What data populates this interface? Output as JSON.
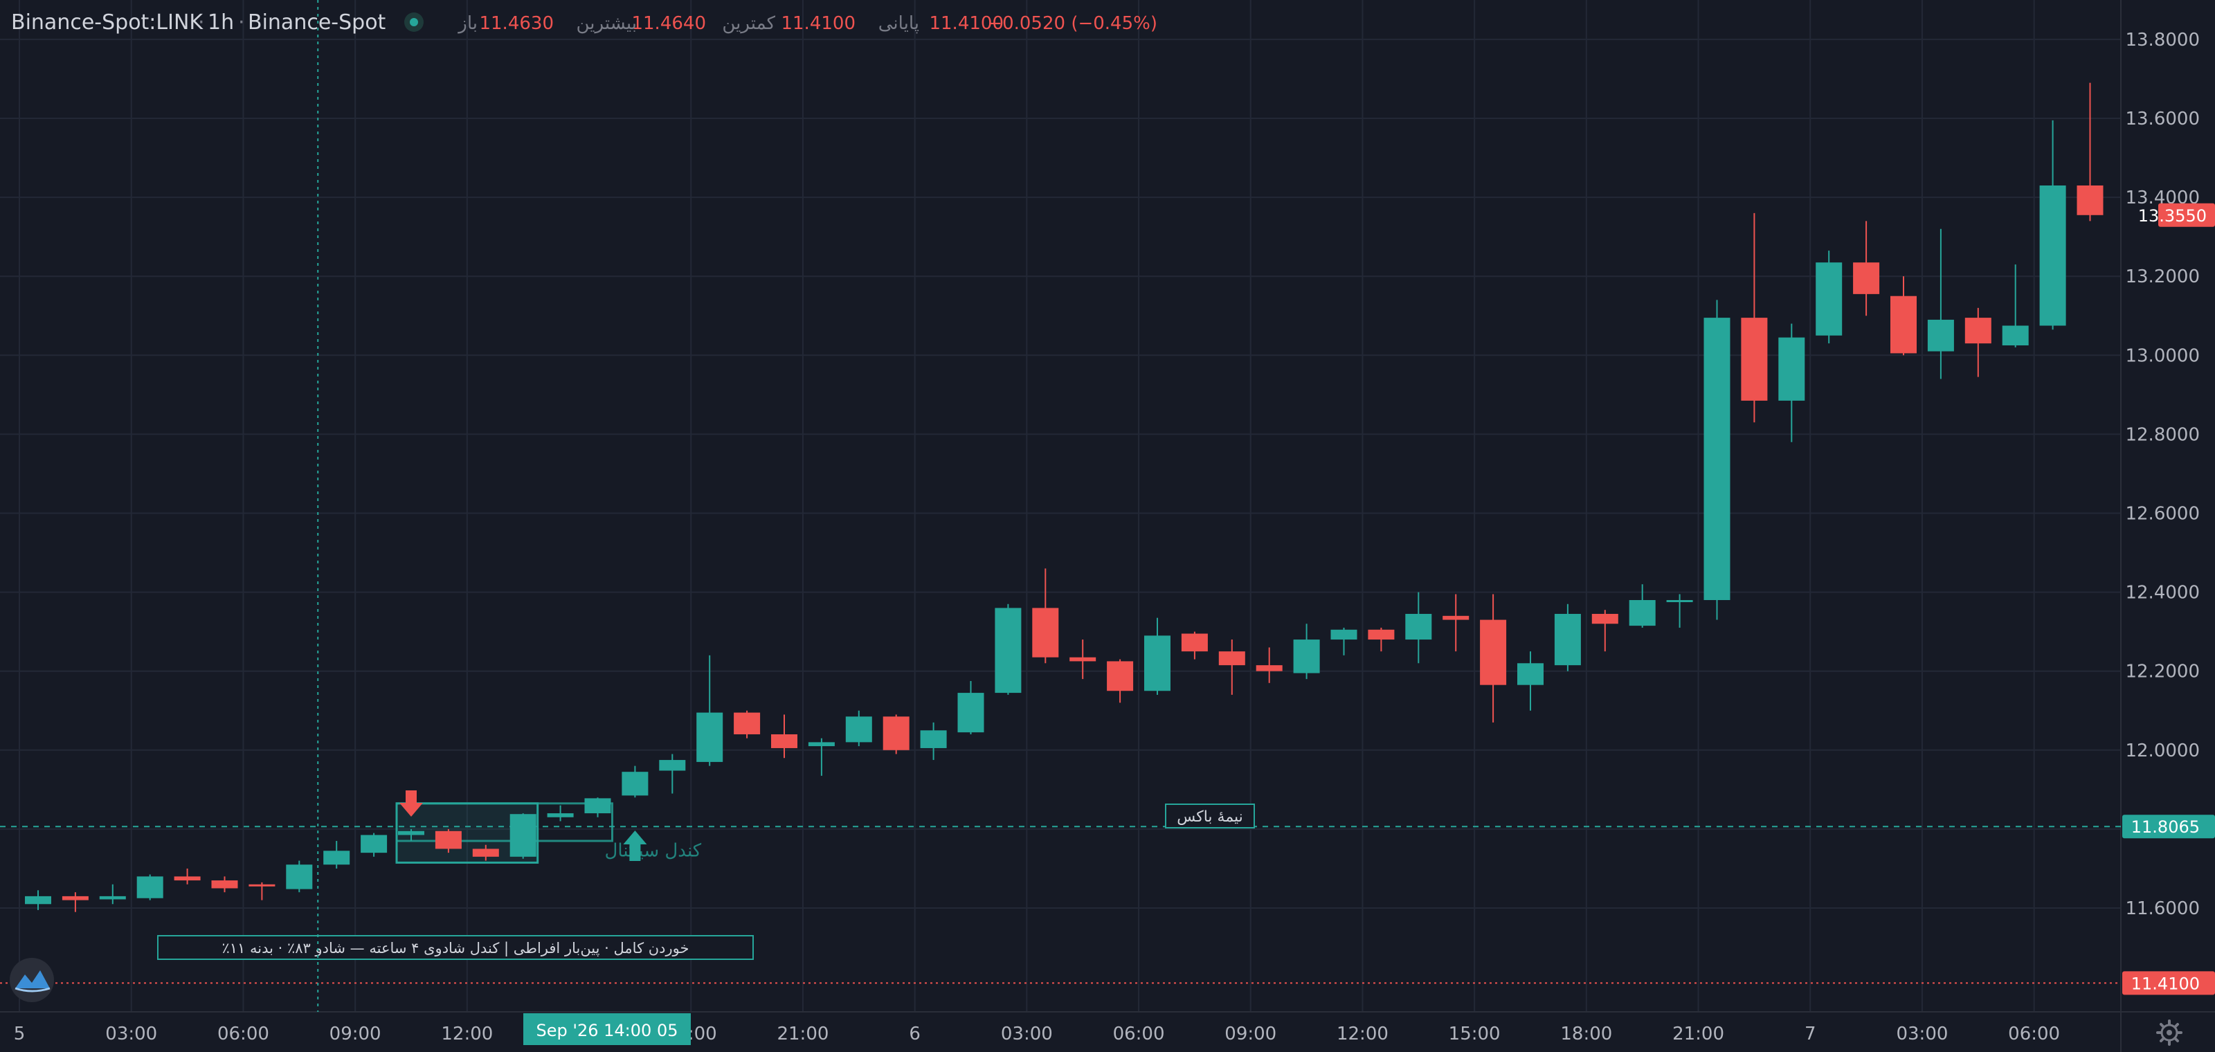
{
  "header": {
    "symbol": "Binance-Spot:LINK",
    "sep1": "·",
    "interval": "1h",
    "sep2": "·",
    "exchange": "Binance-Spot",
    "open_label": "باز",
    "open_value": "11.4630",
    "high_label": "بیشترین",
    "high_value": "11.4640",
    "low_label": "کمترین",
    "low_value": "11.4100",
    "close_label": "پایانی",
    "close_value": "11.4100",
    "change": "−0.0520 (−0.45%)"
  },
  "annotations": {
    "signal_label": "کندل سیگنال",
    "half_box_label": "نیمهٔ باکس",
    "info_text": "٪خوردن کامل · پین‌بار افراطی | کندل شادوی ۴ ساعته — شادو ۸۳٪ · بدنه ۱۱"
  },
  "crosshair_label": "Sep '26  14:00 05",
  "price_tags": {
    "last": "13.3550",
    "midline": "11.8065",
    "low_line": "11.4100"
  },
  "colors": {
    "background": "#161a25",
    "bull": "#26a69a",
    "bear": "#ef5350",
    "grid": "#232836",
    "axis_text": "#b2b5be"
  },
  "icons": [
    "logo-icon",
    "settings-gear-icon",
    "status-dot-icon",
    "arrow-down-icon",
    "arrow-up-icon"
  ],
  "chart_data": {
    "type": "candlestick",
    "title": "Binance-Spot:LINK · 1h",
    "y_axis": {
      "ticks": [
        "11.6000",
        "11.8000",
        "12.0000",
        "12.2000",
        "12.4000",
        "12.6000",
        "12.8000",
        "13.0000",
        "13.2000",
        "13.4000",
        "13.6000",
        "13.8000"
      ],
      "ylim": [
        11.39,
        13.86
      ]
    },
    "x_axis": {
      "ticks": [
        {
          "label": "5",
          "at": -0.5
        },
        {
          "label": "03:00",
          "at": 2.5
        },
        {
          "label": "06:00",
          "at": 5.5
        },
        {
          "label": "09:00",
          "at": 8.5
        },
        {
          "label": "12:00",
          "at": 11.5
        },
        {
          "label": "18:00",
          "at": 17.5
        },
        {
          "label": "21:00",
          "at": 20.5
        },
        {
          "label": "6",
          "at": 23.5
        },
        {
          "label": "03:00",
          "at": 26.5
        },
        {
          "label": "06:00",
          "at": 29.5
        },
        {
          "label": "09:00",
          "at": 32.5
        },
        {
          "label": "12:00",
          "at": 35.5
        },
        {
          "label": "15:00",
          "at": 38.5
        },
        {
          "label": "18:00",
          "at": 41.5
        },
        {
          "label": "21:00",
          "at": 44.5
        },
        {
          "label": "7",
          "at": 47.5
        },
        {
          "label": "03:00",
          "at": 50.5
        },
        {
          "label": "06:00",
          "at": 53.5
        }
      ]
    },
    "candles": [
      {
        "o": 11.61,
        "h": 11.645,
        "l": 11.595,
        "c": 11.63
      },
      {
        "o": 11.63,
        "h": 11.64,
        "l": 11.59,
        "c": 11.62
      },
      {
        "o": 11.622,
        "h": 11.66,
        "l": 11.61,
        "c": 11.63
      },
      {
        "o": 11.625,
        "h": 11.685,
        "l": 11.62,
        "c": 11.68
      },
      {
        "o": 11.68,
        "h": 11.7,
        "l": 11.66,
        "c": 11.67
      },
      {
        "o": 11.67,
        "h": 11.68,
        "l": 11.64,
        "c": 11.65
      },
      {
        "o": 11.66,
        "h": 11.665,
        "l": 11.62,
        "c": 11.658
      },
      {
        "o": 11.648,
        "h": 11.72,
        "l": 11.64,
        "c": 11.71
      },
      {
        "o": 11.71,
        "h": 11.77,
        "l": 11.7,
        "c": 11.745
      },
      {
        "o": 11.74,
        "h": 11.79,
        "l": 11.73,
        "c": 11.785
      },
      {
        "o": 11.785,
        "h": 11.8,
        "l": 11.77,
        "c": 11.795
      },
      {
        "o": 11.795,
        "h": 11.8,
        "l": 11.74,
        "c": 11.75
      },
      {
        "o": 11.75,
        "h": 11.76,
        "l": 11.72,
        "c": 11.73
      },
      {
        "o": 11.73,
        "h": 11.84,
        "l": 11.725,
        "c": 11.838
      },
      {
        "o": 11.83,
        "h": 11.86,
        "l": 11.82,
        "c": 11.84
      },
      {
        "o": 11.84,
        "h": 11.88,
        "l": 11.83,
        "c": 11.878
      },
      {
        "o": 11.885,
        "h": 11.96,
        "l": 11.88,
        "c": 11.945
      },
      {
        "o": 11.948,
        "h": 11.99,
        "l": 11.89,
        "c": 11.975
      },
      {
        "o": 11.97,
        "h": 12.24,
        "l": 11.96,
        "c": 12.095
      },
      {
        "o": 12.095,
        "h": 12.1,
        "l": 12.03,
        "c": 12.04
      },
      {
        "o": 12.04,
        "h": 12.09,
        "l": 11.98,
        "c": 12.005
      },
      {
        "o": 12.01,
        "h": 12.03,
        "l": 11.935,
        "c": 12.02
      },
      {
        "o": 12.02,
        "h": 12.1,
        "l": 12.01,
        "c": 12.085
      },
      {
        "o": 12.085,
        "h": 12.09,
        "l": 11.99,
        "c": 12.0
      },
      {
        "o": 12.005,
        "h": 12.07,
        "l": 11.975,
        "c": 12.05
      },
      {
        "o": 12.045,
        "h": 12.175,
        "l": 12.04,
        "c": 12.145
      },
      {
        "o": 12.145,
        "h": 12.37,
        "l": 12.14,
        "c": 12.36
      },
      {
        "o": 12.36,
        "h": 12.46,
        "l": 12.22,
        "c": 12.235
      },
      {
        "o": 12.235,
        "h": 12.28,
        "l": 12.18,
        "c": 12.225
      },
      {
        "o": 12.225,
        "h": 12.23,
        "l": 12.12,
        "c": 12.15
      },
      {
        "o": 12.15,
        "h": 12.335,
        "l": 12.14,
        "c": 12.29
      },
      {
        "o": 12.295,
        "h": 12.3,
        "l": 12.23,
        "c": 12.25
      },
      {
        "o": 12.25,
        "h": 12.28,
        "l": 12.14,
        "c": 12.215
      },
      {
        "o": 12.215,
        "h": 12.26,
        "l": 12.17,
        "c": 12.2
      },
      {
        "o": 12.195,
        "h": 12.32,
        "l": 12.18,
        "c": 12.28
      },
      {
        "o": 12.28,
        "h": 12.31,
        "l": 12.24,
        "c": 12.305
      },
      {
        "o": 12.305,
        "h": 12.31,
        "l": 12.25,
        "c": 12.28
      },
      {
        "o": 12.28,
        "h": 12.4,
        "l": 12.22,
        "c": 12.345
      },
      {
        "o": 12.34,
        "h": 12.395,
        "l": 12.25,
        "c": 12.33
      },
      {
        "o": 12.33,
        "h": 12.395,
        "l": 12.07,
        "c": 12.165
      },
      {
        "o": 12.165,
        "h": 12.25,
        "l": 12.1,
        "c": 12.22
      },
      {
        "o": 12.215,
        "h": 12.37,
        "l": 12.2,
        "c": 12.345
      },
      {
        "o": 12.345,
        "h": 12.355,
        "l": 12.25,
        "c": 12.32
      },
      {
        "o": 12.315,
        "h": 12.42,
        "l": 12.31,
        "c": 12.38
      },
      {
        "o": 12.38,
        "h": 12.395,
        "l": 12.31,
        "c": 12.38
      },
      {
        "o": 12.38,
        "h": 13.14,
        "l": 12.33,
        "c": 13.095
      },
      {
        "o": 13.095,
        "h": 13.36,
        "l": 12.83,
        "c": 12.885
      },
      {
        "o": 12.885,
        "h": 13.08,
        "l": 12.78,
        "c": 13.045
      },
      {
        "o": 13.05,
        "h": 13.265,
        "l": 13.03,
        "c": 13.235
      },
      {
        "o": 13.235,
        "h": 13.34,
        "l": 13.1,
        "c": 13.155
      },
      {
        "o": 13.15,
        "h": 13.2,
        "l": 13.0,
        "c": 13.005
      },
      {
        "o": 13.01,
        "h": 13.32,
        "l": 12.94,
        "c": 13.09
      },
      {
        "o": 13.095,
        "h": 13.12,
        "l": 12.945,
        "c": 13.03
      },
      {
        "o": 13.025,
        "h": 13.23,
        "l": 13.02,
        "c": 13.075
      },
      {
        "o": 13.075,
        "h": 13.595,
        "l": 13.065,
        "c": 13.43
      },
      {
        "o": 13.43,
        "h": 13.69,
        "l": 13.34,
        "c": 13.355
      }
    ]
  }
}
